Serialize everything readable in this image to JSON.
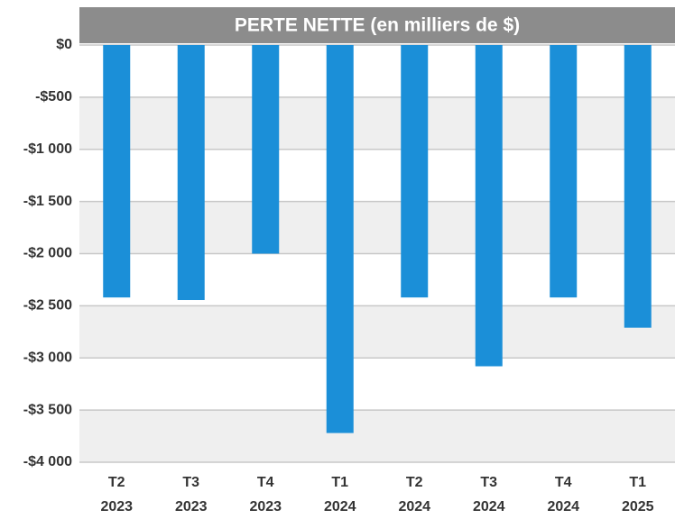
{
  "chart_data": {
    "type": "bar",
    "title": "PERTE NETTE (en milliers de $)",
    "categories": [
      [
        "T2",
        "2023"
      ],
      [
        "T3",
        "2023"
      ],
      [
        "T4",
        "2023"
      ],
      [
        "T1",
        "2024"
      ],
      [
        "T2",
        "2024"
      ],
      [
        "T3",
        "2024"
      ],
      [
        "T4",
        "2024"
      ],
      [
        "T1",
        "2025"
      ]
    ],
    "values": [
      -2420,
      -2445,
      -2000,
      -3720,
      -2420,
      -3080,
      -2420,
      -2710
    ],
    "color": "#1b8fd8",
    "ylim": [
      -4000,
      0
    ],
    "yticks": [
      {
        "value": 0,
        "label": "$0"
      },
      {
        "value": -500,
        "label": "-$500"
      },
      {
        "value": -1000,
        "label": "-$1 000"
      },
      {
        "value": -1500,
        "label": "-$1 500"
      },
      {
        "value": -2000,
        "label": "-$2 000"
      },
      {
        "value": -2500,
        "label": "-$2 500"
      },
      {
        "value": -3000,
        "label": "-$3 000"
      },
      {
        "value": -3500,
        "label": "-$3 500"
      },
      {
        "value": -4000,
        "label": "-$4 000"
      }
    ],
    "grid": true
  }
}
